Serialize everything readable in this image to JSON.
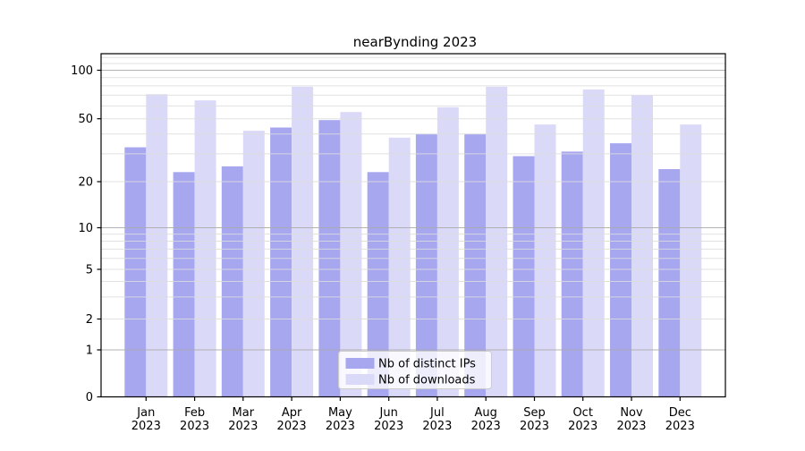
{
  "title": "nearBynding 2023",
  "chart_data": {
    "type": "bar",
    "title": "nearBynding 2023",
    "categories": [
      "Jan",
      "Feb",
      "Mar",
      "Apr",
      "May",
      "Jun",
      "Jul",
      "Aug",
      "Sep",
      "Oct",
      "Nov",
      "Dec"
    ],
    "category_year": "2023",
    "series": [
      {
        "name": "Nb of distinct IPs",
        "color": "#a7a7f0",
        "values": [
          33,
          23,
          25,
          44,
          49,
          23,
          40,
          40,
          29,
          31,
          35,
          24
        ]
      },
      {
        "name": "Nb of downloads",
        "color": "#dadaf8",
        "values": [
          71,
          65,
          42,
          79,
          55,
          38,
          59,
          79,
          46,
          76,
          70,
          46
        ]
      }
    ],
    "y_axis": {
      "scale": "symlog",
      "tick_values": [
        0,
        1,
        2,
        5,
        10,
        20,
        50,
        100
      ],
      "minor_tick_values": [
        3,
        4,
        6,
        7,
        8,
        9,
        30,
        40,
        60,
        70,
        80,
        90,
        110,
        120
      ],
      "major_grid_values": [
        1,
        10,
        100
      ],
      "ylim": [
        0,
        150
      ]
    },
    "x_axis": {
      "label_lines": 2
    },
    "legend": {
      "position": "lower-center"
    },
    "grid": true,
    "colors": {
      "major_grid": "#ababab",
      "minor_grid": "#dcdcdc",
      "axis": "#000000",
      "legend_border": "#cccccc",
      "legend_background": "#ffffff"
    }
  }
}
